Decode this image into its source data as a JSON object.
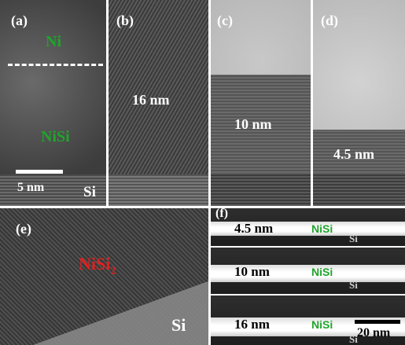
{
  "panels": {
    "a": {
      "label": "(a)",
      "top_layer": "Ni",
      "bottom_layer": "NiSi",
      "scale_bar": "5 nm",
      "substrate": "Si"
    },
    "b": {
      "label": "(b)",
      "thickness": "16 nm"
    },
    "c": {
      "label": "(c)",
      "thickness": "10 nm"
    },
    "d": {
      "label": "(d)",
      "thickness": "4.5 nm"
    },
    "e": {
      "label": "(e)",
      "layer": {
        "text": "NiSi",
        "subscript": "2"
      },
      "substrate": "Si"
    },
    "f": {
      "label": "(f)",
      "strips": [
        {
          "thickness": "4.5 nm",
          "layer": "NiSi",
          "substrate": "Si"
        },
        {
          "thickness": "10 nm",
          "layer": "NiSi",
          "substrate": "Si"
        },
        {
          "thickness": "16 nm",
          "layer": "NiSi",
          "substrate": "Si"
        }
      ],
      "scale_bar": "20 nm"
    }
  }
}
